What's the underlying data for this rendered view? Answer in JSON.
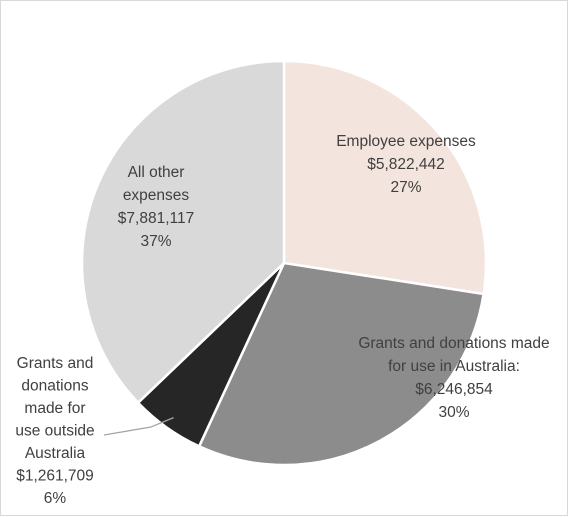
{
  "chart_data": {
    "type": "pie",
    "title": "",
    "start_angle_deg": 0,
    "direction": "clockwise",
    "slices": [
      {
        "name": "Employee expenses",
        "value": 5822442,
        "percent": 27,
        "color": "#f4e4de",
        "label_lines": [
          "Employee expenses",
          "$5,822,442",
          "27%"
        ]
      },
      {
        "name": "Grants and donations made for use in Australia:",
        "value": 6246854,
        "percent": 30,
        "color": "#8c8c8c",
        "label_lines": [
          "Grants and donations made",
          "for use in Australia:",
          "$6,246,854",
          "30%"
        ]
      },
      {
        "name": "Grants and donations made for use outside Australia",
        "value": 1261709,
        "percent": 6,
        "color": "#262626",
        "label_lines": [
          "Grants and",
          "donations",
          "made for",
          "use outside",
          "Australia",
          "$1,261,709",
          "6%"
        ]
      },
      {
        "name": "All other expenses",
        "value": 7881117,
        "percent": 37,
        "color": "#d9d9d9",
        "label_lines": [
          "All other",
          "expenses",
          "$7,881,117",
          "37%"
        ]
      }
    ],
    "legend": "none"
  }
}
